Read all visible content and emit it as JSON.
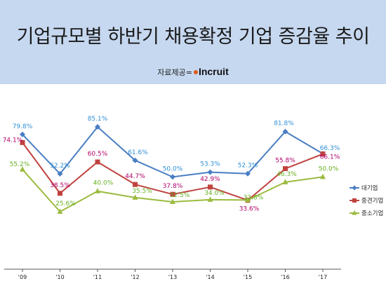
{
  "title": "기업규모별 하반기 채용확정 기업 증감율 추이",
  "credit": {
    "label": "자료제공=",
    "brand": "Incruit"
  },
  "chart_data": {
    "type": "line",
    "categories": [
      "'09",
      "'10",
      "'11",
      "'12",
      "'13",
      "'14",
      "'15",
      "'16",
      "'17"
    ],
    "series": [
      {
        "name": "대기업",
        "color": "#4a7ec3",
        "label_color": "#2e8fd6",
        "marker": "diamond",
        "values": [
          79.8,
          52.2,
          85.1,
          61.6,
          50.0,
          53.3,
          52.3,
          81.8,
          66.3
        ],
        "labels": [
          "79.8%",
          "52.2%",
          "85.1%",
          "61.6%",
          "50.0%",
          "53.3%",
          "52.3%",
          "81.8%",
          "66.3%"
        ]
      },
      {
        "name": "중견기업",
        "color": "#c0423f",
        "label_color": "#b0006a",
        "marker": "square",
        "values": [
          74.1,
          38.5,
          60.5,
          44.7,
          37.8,
          42.9,
          33.6,
          55.8,
          66.1
        ],
        "labels": [
          "74.1%",
          "38.5%",
          "60.5%",
          "44.7%",
          "37.8%",
          "42.9%",
          "33.6%",
          "55.8%",
          "66.1%"
        ]
      },
      {
        "name": "중소기업",
        "color": "#9bbb3f",
        "label_color": "#66b022",
        "marker": "triangle",
        "values": [
          55.2,
          25.6,
          40.0,
          35.5,
          32.5,
          34.0,
          33.8,
          46.3,
          50.0
        ],
        "labels": [
          "55.2%",
          "25.6%",
          "40.0%",
          "35.5%",
          "32.5%",
          "34.0%",
          "33.8%",
          "46.3%",
          "50.0%"
        ]
      }
    ],
    "legend_position": "right",
    "grid": false
  }
}
